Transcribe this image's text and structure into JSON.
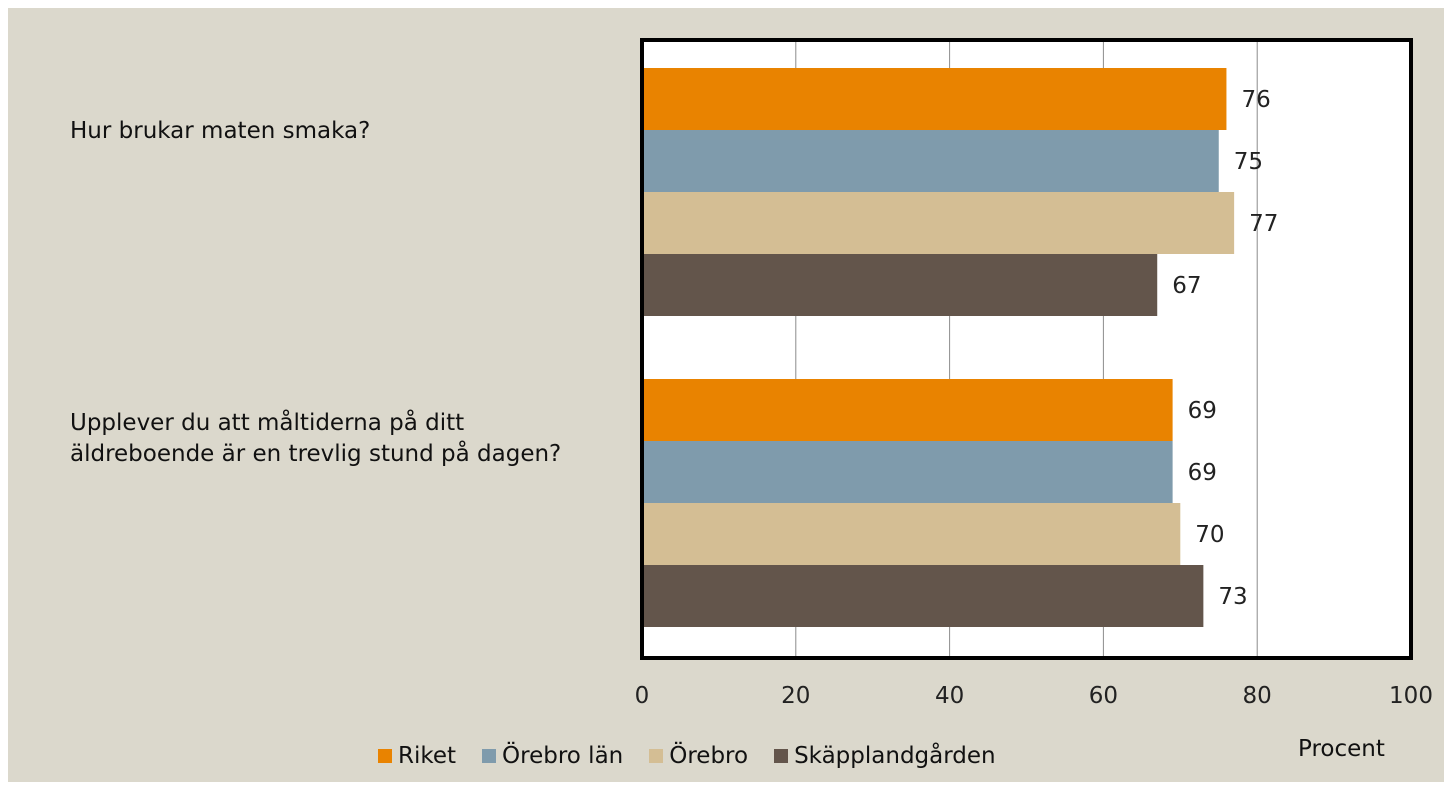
{
  "chart_data": {
    "type": "bar",
    "orientation": "horizontal",
    "categories": [
      "Hur brukar maten smaka?",
      "Upplever du att måltiderna på ditt äldreboende är en trevlig stund på dagen?"
    ],
    "series": [
      {
        "name": "Riket",
        "color": "#e98300",
        "values": [
          76,
          69
        ]
      },
      {
        "name": "Örebro län",
        "color": "#7f9bac",
        "values": [
          75,
          69
        ]
      },
      {
        "name": "Örebro",
        "color": "#d4be94",
        "values": [
          77,
          70
        ]
      },
      {
        "name": "Skäpplandgården",
        "color": "#63554b",
        "values": [
          67,
          73
        ]
      }
    ],
    "xlabel": "Procent",
    "xlim": [
      0,
      100
    ],
    "xticks": [
      0,
      20,
      40,
      60,
      80,
      100
    ],
    "grid": true,
    "legend": "bottom"
  }
}
